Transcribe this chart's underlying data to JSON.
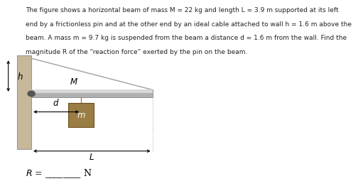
{
  "text_line1": "The figure shows a horizontal beam of mass M = 22 kg and length L = 3.9 m supported at its left",
  "text_line2": "end by a frictionless pin and at the other end by an ideal cable attached to wall h = 1.6 m above the",
  "text_line3": "beam. A mass m = 9.7 kg is suspended from the beam a distance d = 1.6 m from the wall. Find the",
  "text_line4": "magnitude R of the “reaction force” exerted by the pin on the beam.",
  "bg_color": "#ffffff",
  "wall_color": "#c8b89a",
  "wall_edge_color": "#999999",
  "beam_color_dark": "#b0b0b0",
  "beam_color_light": "#d8d8d8",
  "cable_color": "#a0a0a0",
  "mass_color": "#9a7d45",
  "mass_edge_color": "#6a5020",
  "pin_color": "#555555",
  "arrow_color": "#000000",
  "dot_color": "#aaaaaa",
  "string_color": "#b08040",
  "font_size_text": 6.5,
  "font_size_label": 8.5,
  "font_size_answer": 9
}
